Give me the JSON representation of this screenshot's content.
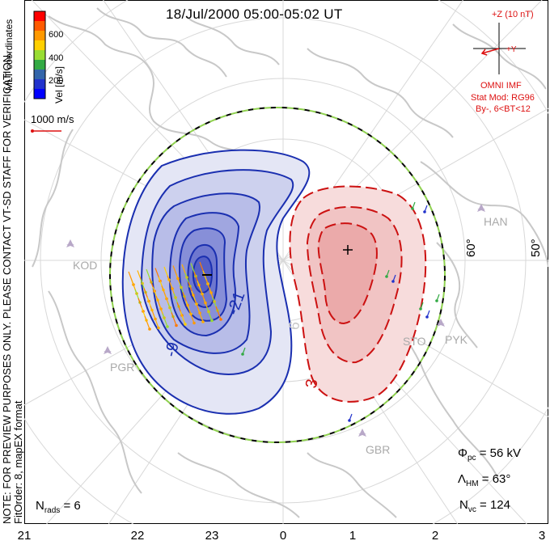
{
  "title": "18/Jul/2000 05:00-05:02 UT",
  "vertical_note": {
    "line1": "NOTE: FOR PREVIEW PURPOSES ONLY. PLEASE CONTACT VT-SD STAFF FOR VERIFICATION.",
    "line2": "FitOrder: 8, mapEX format"
  },
  "colorbar": {
    "axis_label": "Vel [m/s]",
    "coord_label": "MLT coordinates",
    "ticks": [
      "600",
      "400",
      "200"
    ],
    "colors": [
      "#ff0000",
      "#ff5a00",
      "#ff9900",
      "#ffd000",
      "#99dd33",
      "#33aa44",
      "#3366aa",
      "#2233cc",
      "#0000ff"
    ]
  },
  "scale_vector": {
    "label": "1000 m/s",
    "color": "#d11"
  },
  "imf": {
    "z_label": "+Z (10 nT)",
    "y_label": "+Y",
    "source": "OMNI IMF",
    "model": "Stat Mod: RG96",
    "condition": "By-, 6<BT<12"
  },
  "lat_labels": [
    "60°",
    "50°"
  ],
  "stations": [
    "HAN",
    "KOD",
    "PGR",
    "STO",
    "PYK",
    "GBR"
  ],
  "contour_labels": {
    "neg": [
      "-21",
      "-9"
    ],
    "pos": [
      "3",
      "6"
    ],
    "min_marker": "−",
    "max_marker": "+"
  },
  "stats": {
    "phi_symbol": "Φ",
    "phi_sub": "pc",
    "phi_value": "= 56 kV",
    "lambda_symbol": "Λ",
    "lambda_sub": "HM",
    "lambda_value": "= 63°",
    "nvc_symbol": "N",
    "nvc_sub": "vc",
    "nvc_value": "= 124",
    "nrads_symbol": "N",
    "nrads_sub": "rads",
    "nrads_value": "= 6"
  },
  "mlt_ticks": [
    "21",
    "22",
    "23",
    "0",
    "1",
    "2",
    "3"
  ],
  "colors": {
    "negative_contour": "#1a2fb0",
    "positive_contour": "#cc1111",
    "hmb": "#8fd14f",
    "coast": "#c8c8c8",
    "grid": "#d8d8d8"
  }
}
